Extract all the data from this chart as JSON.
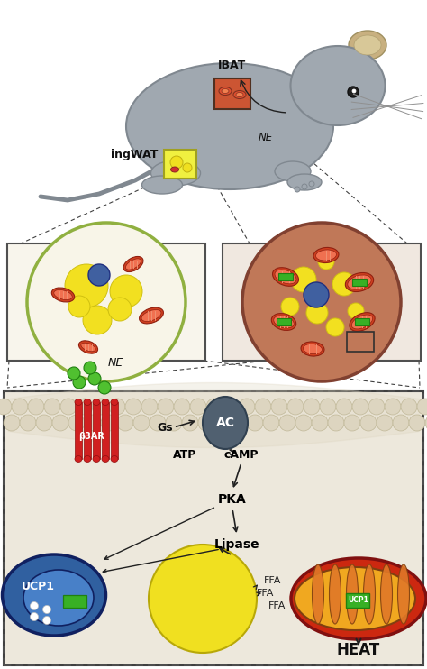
{
  "title": "",
  "labels": {
    "IBAT": "IBAT",
    "ingWAT": "ingWAT",
    "NE": "NE",
    "NE2": "NE",
    "Gs": "Gs",
    "AC": "AC",
    "ATP": "ATP",
    "cAMP": "cAMP",
    "PKA": "PKA",
    "Lipase": "Lipase",
    "b3AR": "β3AR",
    "UCP1_blue": "UCP1",
    "UCP1_green": "UCP1",
    "FFA1": "FFA",
    "FFA2": "FFA",
    "FFA3": "FFA",
    "HEAT": "HEAT"
  },
  "bg_color": "#ffffff",
  "panel_bg": "#f0ece0",
  "mouse_body": "#a0a8b0",
  "mouse_outline": "#808890",
  "ibat_region": "#c8603a",
  "ingwat_region": "#e8e830",
  "wat_cell_bg": "#f5f0e0",
  "bat_cell_bg": "#c07050",
  "cell_border_wat": "#a0c060",
  "cell_border_bat": "#804020",
  "lipid_yellow": "#f0e020",
  "mito_red": "#d04020",
  "mito_orange": "#e08030",
  "nucleus_blue": "#4060a0",
  "green_protein": "#40b030",
  "b3ar_red": "#d02020",
  "ne_green": "#50c030",
  "ac_gray": "#506070",
  "membrane_spheres": "#e8e0d0",
  "arrow_color": "#202020",
  "signaling_bg": "#ede8dc",
  "ucp1_cell_blue": "#3060a0",
  "mito_outer": "#c83020",
  "mito_inner": "#e06040",
  "mito_cristae": "#f0a030",
  "dashed_line": "#404040"
}
